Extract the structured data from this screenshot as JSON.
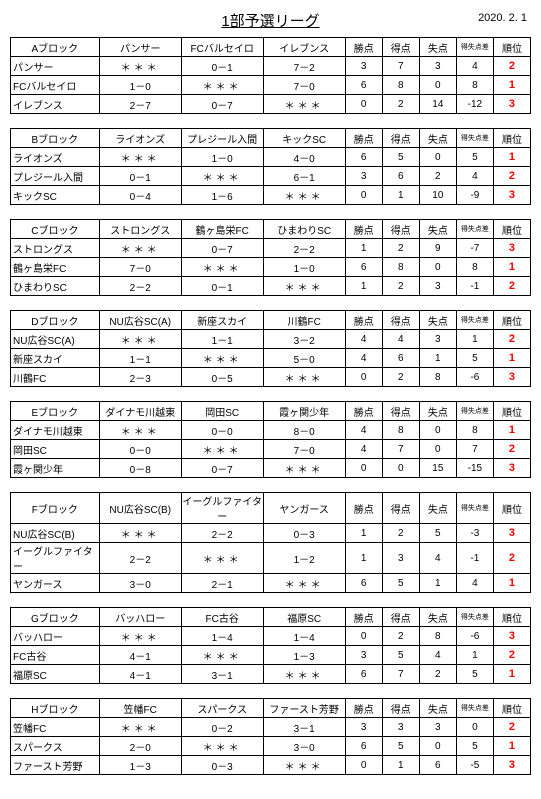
{
  "header": {
    "title": "1部予選リーグ",
    "date": "2020. 2. 1"
  },
  "stat_headers": [
    "勝点",
    "得点",
    "失点",
    "得失点差",
    "順位"
  ],
  "stars": "＊＊＊",
  "blocks": [
    {
      "label": "Aブロック",
      "teams": [
        "パンサー",
        "FCバルセイロ",
        "イレブンス"
      ],
      "rows": [
        {
          "name": "パンサー",
          "scores": [
            null,
            "0－1",
            "7－2"
          ],
          "stats": [
            "3",
            "7",
            "3",
            "4"
          ],
          "rank": "2"
        },
        {
          "name": "FCバルセイロ",
          "scores": [
            "1－0",
            null,
            "7－0"
          ],
          "stats": [
            "6",
            "8",
            "0",
            "8"
          ],
          "rank": "1"
        },
        {
          "name": "イレブンス",
          "scores": [
            "2－7",
            "0－7",
            null
          ],
          "stats": [
            "0",
            "2",
            "14",
            "-12"
          ],
          "rank": "3"
        }
      ]
    },
    {
      "label": "Bブロック",
      "teams": [
        "ライオンズ",
        "プレジール入間",
        "キックSC"
      ],
      "rows": [
        {
          "name": "ライオンズ",
          "scores": [
            null,
            "1－0",
            "4－0"
          ],
          "stats": [
            "6",
            "5",
            "0",
            "5"
          ],
          "rank": "1"
        },
        {
          "name": "プレジール入間",
          "scores": [
            "0－1",
            null,
            "6－1"
          ],
          "stats": [
            "3",
            "6",
            "2",
            "4"
          ],
          "rank": "2"
        },
        {
          "name": "キックSC",
          "scores": [
            "0－4",
            "1－6",
            null
          ],
          "stats": [
            "0",
            "1",
            "10",
            "-9"
          ],
          "rank": "3"
        }
      ]
    },
    {
      "label": "Cブロック",
      "teams": [
        "ストロングス",
        "鶴ヶ島栄FC",
        "ひまわりSC"
      ],
      "rows": [
        {
          "name": "ストロングス",
          "scores": [
            null,
            "0－7",
            "2－2"
          ],
          "stats": [
            "1",
            "2",
            "9",
            "-7"
          ],
          "rank": "3"
        },
        {
          "name": "鶴ヶ島栄FC",
          "scores": [
            "7－0",
            null,
            "1－0"
          ],
          "stats": [
            "6",
            "8",
            "0",
            "8"
          ],
          "rank": "1"
        },
        {
          "name": "ひまわりSC",
          "scores": [
            "2－2",
            "0－1",
            null
          ],
          "stats": [
            "1",
            "2",
            "3",
            "-1"
          ],
          "rank": "2"
        }
      ]
    },
    {
      "label": "Dブロック",
      "teams": [
        "NU広谷SC(A)",
        "新座スカイ",
        "川鶴FC"
      ],
      "rows": [
        {
          "name": "NU広谷SC(A)",
          "scores": [
            null,
            "1－1",
            "3－2"
          ],
          "stats": [
            "4",
            "4",
            "3",
            "1"
          ],
          "rank": "2"
        },
        {
          "name": "新座スカイ",
          "scores": [
            "1－1",
            null,
            "5－0"
          ],
          "stats": [
            "4",
            "6",
            "1",
            "5"
          ],
          "rank": "1"
        },
        {
          "name": "川鶴FC",
          "scores": [
            "2－3",
            "0－5",
            null
          ],
          "stats": [
            "0",
            "2",
            "8",
            "-6"
          ],
          "rank": "3"
        }
      ]
    },
    {
      "label": "Eブロック",
      "teams": [
        "ダイナモ川越東",
        "岡田SC",
        "霞ヶ関少年"
      ],
      "rows": [
        {
          "name": "ダイナモ川越東",
          "scores": [
            null,
            "0－0",
            "8－0"
          ],
          "stats": [
            "4",
            "8",
            "0",
            "8"
          ],
          "rank": "1"
        },
        {
          "name": "岡田SC",
          "scores": [
            "0－0",
            null,
            "7－0"
          ],
          "stats": [
            "4",
            "7",
            "0",
            "7"
          ],
          "rank": "2"
        },
        {
          "name": "霞ヶ関少年",
          "scores": [
            "0－8",
            "0－7",
            null
          ],
          "stats": [
            "0",
            "0",
            "15",
            "-15"
          ],
          "rank": "3"
        }
      ]
    },
    {
      "label": "Fブロック",
      "teams": [
        "NU広谷SC(B)",
        "イーグルファイター",
        "ヤンガース"
      ],
      "rows": [
        {
          "name": "NU広谷SC(B)",
          "scores": [
            null,
            "2－2",
            "0－3"
          ],
          "stats": [
            "1",
            "2",
            "5",
            "-3"
          ],
          "rank": "3"
        },
        {
          "name": "イーグルファイター",
          "scores": [
            "2－2",
            null,
            "1－2"
          ],
          "stats": [
            "1",
            "3",
            "4",
            "-1"
          ],
          "rank": "2"
        },
        {
          "name": "ヤンガース",
          "scores": [
            "3－0",
            "2－1",
            null
          ],
          "stats": [
            "6",
            "5",
            "1",
            "4"
          ],
          "rank": "1"
        }
      ]
    },
    {
      "label": "Gブロック",
      "teams": [
        "バッハロー",
        "FC古谷",
        "福原SC"
      ],
      "rows": [
        {
          "name": "バッハロー",
          "scores": [
            null,
            "1－4",
            "1－4"
          ],
          "stats": [
            "0",
            "2",
            "8",
            "-6"
          ],
          "rank": "3"
        },
        {
          "name": "FC古谷",
          "scores": [
            "4－1",
            null,
            "1－3"
          ],
          "stats": [
            "3",
            "5",
            "4",
            "1"
          ],
          "rank": "2"
        },
        {
          "name": "福原SC",
          "scores": [
            "4－1",
            "3－1",
            null
          ],
          "stats": [
            "6",
            "7",
            "2",
            "5"
          ],
          "rank": "1"
        }
      ]
    },
    {
      "label": "Hブロック",
      "teams": [
        "笠幡FC",
        "スパークス",
        "ファースト芳野"
      ],
      "rows": [
        {
          "name": "笠幡FC",
          "scores": [
            null,
            "0－2",
            "3－1"
          ],
          "stats": [
            "3",
            "3",
            "3",
            "0"
          ],
          "rank": "2"
        },
        {
          "name": "スパークス",
          "scores": [
            "2－0",
            null,
            "3－0"
          ],
          "stats": [
            "6",
            "5",
            "0",
            "5"
          ],
          "rank": "1"
        },
        {
          "name": "ファースト芳野",
          "scores": [
            "1－3",
            "0－3",
            null
          ],
          "stats": [
            "0",
            "1",
            "6",
            "-5"
          ],
          "rank": "3"
        }
      ]
    }
  ]
}
